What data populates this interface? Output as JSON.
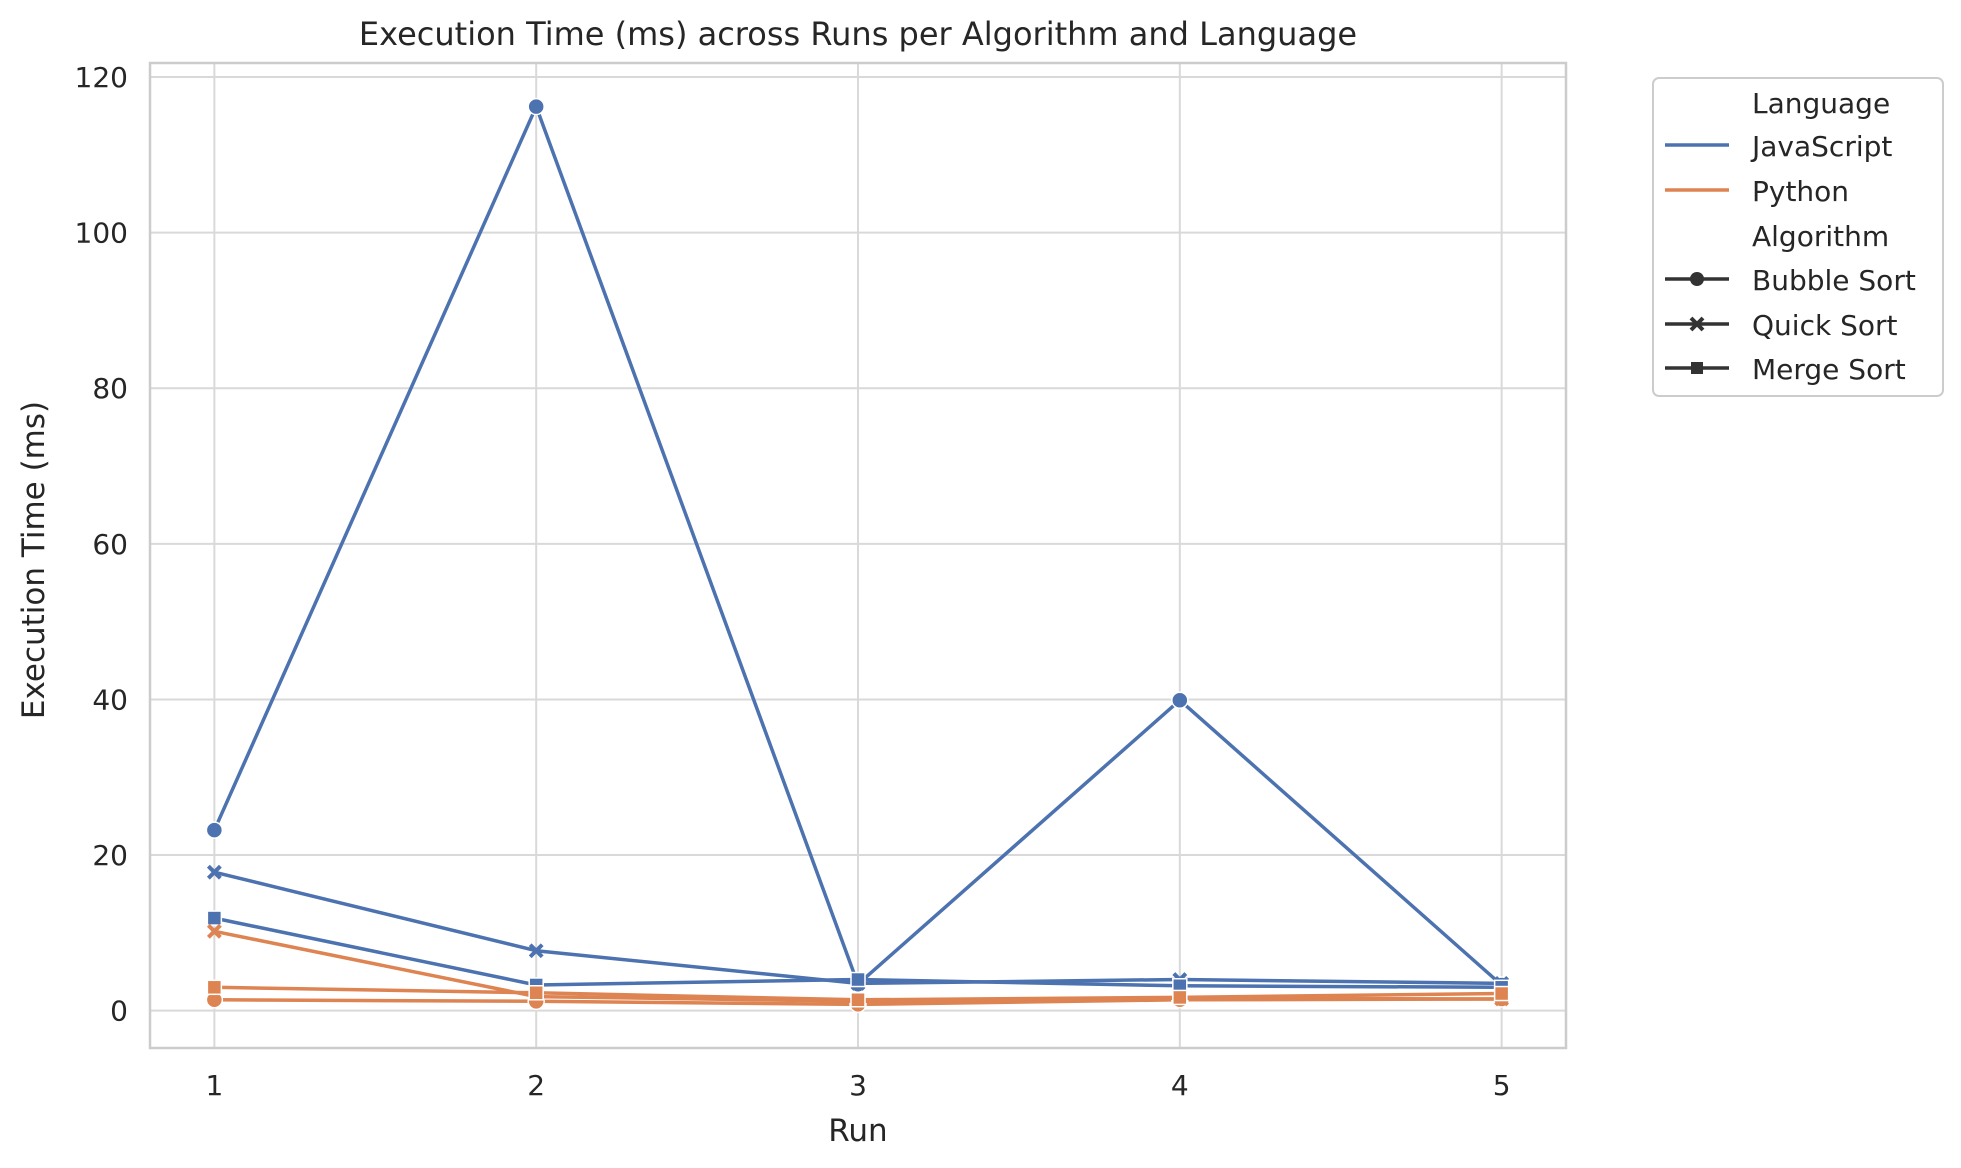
{
  "chart_data": {
    "type": "line",
    "title": "Execution Time (ms) across Runs per Algorithm and Language",
    "xlabel": "Run",
    "ylabel": "Execution Time (ms)",
    "x": [
      1,
      2,
      3,
      4,
      5
    ],
    "x_ticks": [
      "1",
      "2",
      "3",
      "4",
      "5"
    ],
    "y_ticks": [
      "0",
      "20",
      "40",
      "60",
      "80",
      "100",
      "120"
    ],
    "xlim": [
      0.8,
      5.2
    ],
    "ylim": [
      -4.8,
      121.8
    ],
    "grid": true,
    "legend_position": "outside-top-right",
    "legend": {
      "hue_title": "Language",
      "style_title": "Algorithm",
      "languages": [
        "JavaScript",
        "Python"
      ],
      "algorithms": [
        "Bubble Sort",
        "Quick Sort",
        "Merge Sort"
      ]
    },
    "colors": {
      "JavaScript": "#4c72b0",
      "Python": "#dd8452"
    },
    "markers": {
      "Bubble Sort": "circle",
      "Quick Sort": "x",
      "Merge Sort": "square"
    },
    "series": [
      {
        "language": "JavaScript",
        "algorithm": "Bubble Sort",
        "values": [
          23.2,
          116.2,
          3.4,
          39.9,
          3.3
        ]
      },
      {
        "language": "JavaScript",
        "algorithm": "Quick Sort",
        "values": [
          17.8,
          7.7,
          3.5,
          4.0,
          3.5
        ]
      },
      {
        "language": "JavaScript",
        "algorithm": "Merge Sort",
        "values": [
          11.9,
          3.3,
          4.0,
          3.2,
          3.0
        ]
      },
      {
        "language": "Python",
        "algorithm": "Bubble Sort",
        "values": [
          1.4,
          1.2,
          0.8,
          1.4,
          1.5
        ]
      },
      {
        "language": "Python",
        "algorithm": "Quick Sort",
        "values": [
          10.2,
          1.8,
          1.2,
          1.6,
          1.5
        ]
      },
      {
        "language": "Python",
        "algorithm": "Merge Sort",
        "values": [
          3.0,
          2.3,
          1.4,
          1.7,
          2.2
        ]
      }
    ]
  }
}
